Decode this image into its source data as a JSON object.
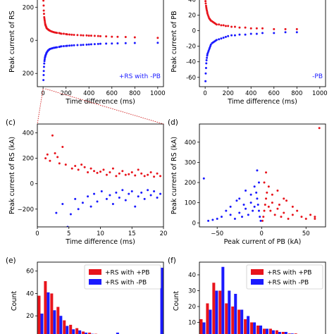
{
  "chart_data": [
    {
      "panel": "a",
      "panel_label": "",
      "type": "scatter",
      "title": "",
      "xlabel": "Time difference (ms)",
      "ylabel": "Peak current of RS (kA)",
      "ylabel_visible": "Peak current of RS",
      "xlim": [
        -50,
        1050
      ],
      "ylim": [
        -280,
        265
      ],
      "y_abs_ticks": true,
      "xticks": [
        0,
        200,
        400,
        600,
        800,
        1000
      ],
      "yticks": [
        200,
        0,
        -200
      ],
      "ytick_labels": [
        "200",
        "0",
        "200"
      ],
      "annotation": "+RS with -PB",
      "series": [
        {
          "color": "#e8141c",
          "x": [
            3,
            5,
            6,
            8,
            10,
            12,
            14,
            16,
            18,
            20,
            22,
            25,
            28,
            30,
            35,
            40,
            45,
            50,
            55,
            60,
            70,
            80,
            90,
            100,
            110,
            120,
            140,
            150,
            160,
            180,
            200,
            210,
            230,
            250,
            270,
            300,
            330,
            350,
            380,
            400,
            420,
            450,
            480,
            500,
            550,
            600,
            650,
            720,
            800,
            1000
          ],
          "y": [
            240,
            210,
            180,
            160,
            140,
            130,
            120,
            110,
            100,
            95,
            90,
            85,
            80,
            75,
            70,
            68,
            65,
            62,
            60,
            58,
            55,
            52,
            50,
            48,
            47,
            45,
            44,
            42,
            40,
            40,
            38,
            36,
            35,
            34,
            33,
            32,
            31,
            30,
            30,
            28,
            28,
            27,
            26,
            25,
            24,
            22,
            21,
            20,
            18,
            15
          ]
        },
        {
          "color": "#1a1aff",
          "x": [
            3,
            5,
            6,
            8,
            10,
            12,
            14,
            16,
            18,
            20,
            22,
            25,
            28,
            30,
            35,
            40,
            45,
            50,
            55,
            60,
            70,
            80,
            90,
            100,
            110,
            120,
            140,
            150,
            160,
            180,
            200,
            210,
            230,
            250,
            270,
            300,
            330,
            350,
            380,
            400,
            420,
            450,
            480,
            500,
            550,
            600,
            650,
            720,
            800,
            1000
          ],
          "y": [
            -240,
            -210,
            -185,
            -160,
            -140,
            -125,
            -115,
            -105,
            -100,
            -95,
            -90,
            -85,
            -80,
            -75,
            -70,
            -65,
            -60,
            -58,
            -55,
            -52,
            -50,
            -48,
            -46,
            -45,
            -43,
            -42,
            -40,
            -38,
            -36,
            -35,
            -34,
            -33,
            -32,
            -31,
            -30,
            -29,
            -28,
            -27,
            -26,
            -25,
            -24,
            -23,
            -22,
            -21,
            -20,
            -19,
            -18,
            -17,
            -16,
            -15
          ]
        }
      ]
    },
    {
      "panel": "b",
      "panel_label": "",
      "type": "scatter",
      "title": "",
      "xlabel": "Time difference (ms)",
      "ylabel": "Peak current of PB",
      "xlim": [
        -50,
        1050
      ],
      "ylim": [
        -72,
        44
      ],
      "xticks": [
        0,
        200,
        400,
        600,
        800,
        1000
      ],
      "yticks": [
        40,
        20,
        0,
        -20,
        -40,
        -60
      ],
      "annotation": "-PB",
      "series": [
        {
          "color": "#e8141c",
          "x": [
            3,
            5,
            8,
            10,
            12,
            15,
            18,
            20,
            25,
            30,
            35,
            40,
            45,
            50,
            60,
            70,
            80,
            90,
            100,
            120,
            140,
            160,
            180,
            200,
            230,
            260,
            300,
            350,
            400,
            450,
            500,
            600,
            700,
            800
          ],
          "y": [
            38,
            35,
            32,
            30,
            28,
            26,
            24,
            22,
            20,
            18,
            16,
            15,
            14,
            13,
            12,
            11,
            10,
            9,
            8,
            8,
            7,
            7,
            6,
            6,
            5,
            5,
            4,
            4,
            3,
            3,
            3,
            2,
            2,
            2
          ]
        },
        {
          "color": "#1a1aff",
          "x": [
            3,
            5,
            8,
            10,
            12,
            15,
            18,
            20,
            25,
            30,
            35,
            40,
            45,
            50,
            60,
            70,
            80,
            90,
            100,
            120,
            140,
            160,
            180,
            200,
            230,
            260,
            300,
            350,
            400,
            450,
            500,
            600,
            700,
            800
          ],
          "y": [
            -65,
            -55,
            -48,
            -42,
            -38,
            -35,
            -32,
            -30,
            -28,
            -26,
            -24,
            -22,
            -20,
            -18,
            -16,
            -15,
            -14,
            -13,
            -12,
            -11,
            -10,
            -9,
            -8,
            -7,
            -6,
            -6,
            -5,
            -5,
            -4,
            -4,
            -3,
            -3,
            -2,
            -2
          ]
        }
      ]
    },
    {
      "panel": "c",
      "panel_label": "(c)",
      "type": "scatter",
      "title": "",
      "xlabel": "Time difference (ms)",
      "ylabel": "Peak current of RS (kA)",
      "xlim": [
        0,
        20
      ],
      "ylim": [
        -340,
        470
      ],
      "xticks": [
        0,
        5,
        10,
        15,
        20
      ],
      "yticks": [
        400,
        200,
        0,
        -200
      ],
      "ytick_labels": [
        "400",
        "200",
        "0",
        "−200"
      ],
      "series": [
        {
          "color": "#e8141c",
          "x": [
            1.3,
            1.6,
            2.0,
            2.4,
            2.8,
            3.2,
            3.5,
            4.0,
            4.5,
            5.0,
            5.5,
            6.0,
            6.5,
            7.0,
            7.5,
            8.0,
            8.5,
            9.0,
            9.5,
            10.0,
            10.5,
            11.0,
            11.5,
            12.0,
            12.5,
            13.0,
            13.5,
            14.0,
            14.5,
            15.0,
            15.5,
            16.0,
            16.5,
            17.0,
            17.5,
            18.0,
            18.5,
            19.0,
            19.5
          ],
          "y": [
            200,
            230,
            180,
            380,
            240,
            210,
            160,
            290,
            150,
            480,
            120,
            140,
            110,
            150,
            130,
            90,
            120,
            100,
            85,
            95,
            110,
            70,
            90,
            120,
            60,
            80,
            100,
            70,
            75,
            90,
            65,
            110,
            80,
            60,
            70,
            90,
            55,
            80,
            60
          ]
        },
        {
          "color": "#1a1aff",
          "x": [
            3.0,
            4.0,
            4.8,
            5.3,
            6.0,
            6.5,
            7.2,
            8.0,
            8.5,
            9.0,
            9.5,
            10.2,
            11.0,
            11.5,
            12.0,
            12.5,
            13.0,
            13.5,
            14.0,
            14.5,
            15.0,
            15.5,
            16.0,
            16.5,
            17.0,
            17.5,
            18.0,
            18.5,
            19.0,
            19.5
          ],
          "y": [
            -230,
            -160,
            -340,
            -240,
            -120,
            -200,
            -150,
            -100,
            -180,
            -80,
            -140,
            -60,
            -120,
            -90,
            -160,
            -70,
            -110,
            -50,
            -130,
            -80,
            -60,
            -180,
            -100,
            -70,
            -120,
            -50,
            -90,
            -60,
            -110,
            -80
          ]
        }
      ]
    },
    {
      "panel": "d",
      "panel_label": "(d)",
      "type": "scatter",
      "title": "",
      "xlabel": "Peak current of PB (kA)",
      "ylabel": "Peak current of RS (kA)",
      "xlim": [
        -70,
        72
      ],
      "ylim": [
        -20,
        490
      ],
      "xticks": [
        -50,
        0,
        50
      ],
      "xtick_labels": [
        "−50",
        "0",
        "50"
      ],
      "yticks": [
        0,
        100,
        200,
        300,
        400
      ],
      "series": [
        {
          "color": "#e8141c",
          "x": [
            1,
            2,
            3,
            4,
            5,
            6,
            8,
            10,
            12,
            15,
            18,
            20,
            22,
            25,
            28,
            30,
            35,
            40,
            45,
            50,
            55,
            60,
            65,
            3,
            5,
            8,
            12,
            18,
            25,
            35,
            60
          ],
          "y": [
            10,
            30,
            60,
            90,
            120,
            150,
            80,
            60,
            100,
            40,
            70,
            90,
            30,
            50,
            110,
            20,
            40,
            60,
            30,
            20,
            40,
            30,
            470,
            200,
            250,
            180,
            140,
            160,
            120,
            80,
            20
          ]
        },
        {
          "color": "#1a1aff",
          "x": [
            -1,
            -2,
            -3,
            -4,
            -5,
            -6,
            -8,
            -10,
            -12,
            -15,
            -18,
            -20,
            -22,
            -25,
            -28,
            -30,
            -35,
            -40,
            -45,
            -50,
            -55,
            -60,
            -3,
            -5,
            -8,
            -12,
            -18,
            -25,
            -35,
            -65
          ],
          "y": [
            10,
            30,
            60,
            90,
            120,
            150,
            80,
            60,
            100,
            40,
            70,
            90,
            30,
            50,
            110,
            20,
            40,
            60,
            30,
            20,
            15,
            10,
            200,
            260,
            180,
            140,
            160,
            120,
            80,
            220
          ]
        }
      ]
    },
    {
      "panel": "e",
      "panel_label": "(e)",
      "type": "bar",
      "title": "",
      "xlabel": "",
      "ylabel": "Count",
      "ylim": [
        0,
        68
      ],
      "yticks": [
        0,
        20,
        40,
        60
      ],
      "legend": {
        "placement": "top-right",
        "entries": [
          "+RS with +PB",
          "+RS with -PB"
        ]
      },
      "bins": 20,
      "series": [
        {
          "name": "+RS with +PB",
          "color": "#e8141c",
          "values": [
            38,
            51,
            40,
            28,
            16,
            12,
            9,
            6,
            5,
            4,
            3,
            3,
            2,
            2,
            2,
            1,
            2,
            1,
            1,
            3
          ]
        },
        {
          "name": "+RS with -PB",
          "color": "#1a1aff",
          "values": [
            22,
            41,
            25,
            20,
            11,
            8,
            7,
            5,
            4,
            3,
            2,
            2,
            5,
            3,
            1,
            1,
            2,
            1,
            2,
            63
          ]
        }
      ]
    },
    {
      "panel": "f",
      "panel_label": "(f)",
      "type": "bar",
      "title": "",
      "xlabel": "",
      "ylabel": "Count",
      "ylim": [
        0,
        48
      ],
      "yticks": [
        0,
        10,
        20,
        30,
        40
      ],
      "legend": {
        "placement": "top-right",
        "entries": [
          "+RS with +PB",
          "+RS with -PB"
        ]
      },
      "bins": 20,
      "series": [
        {
          "name": "+RS with +PB",
          "color": "#e8141c",
          "values": [
            12,
            22,
            35,
            30,
            22,
            20,
            18,
            12,
            10,
            8,
            6,
            6,
            5,
            4,
            3,
            3,
            2,
            2,
            2,
            1
          ]
        },
        {
          "name": "+RS with -PB",
          "color": "#1a1aff",
          "values": [
            10,
            18,
            30,
            45,
            30,
            28,
            18,
            14,
            10,
            8,
            6,
            5,
            4,
            4,
            3,
            2,
            2,
            2,
            1,
            1
          ]
        }
      ]
    }
  ]
}
